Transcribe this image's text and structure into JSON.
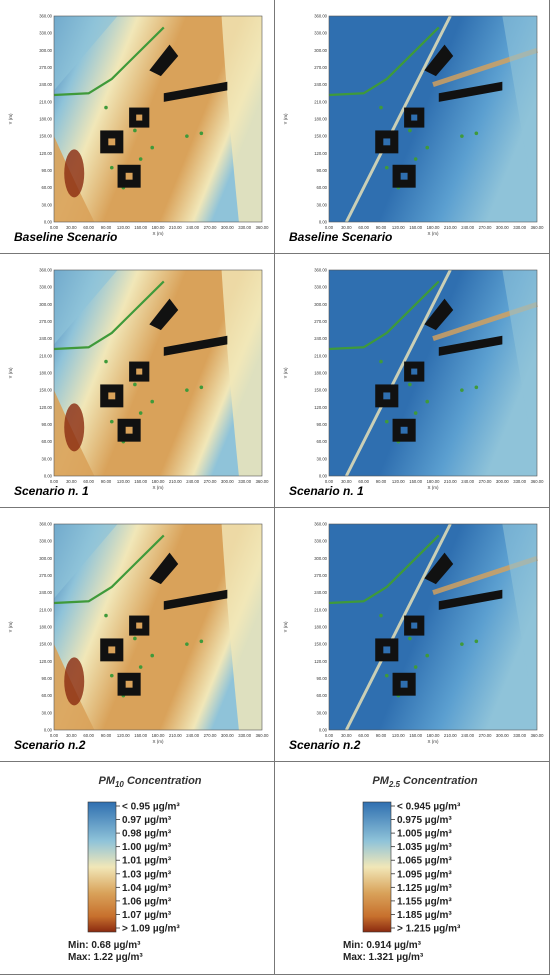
{
  "chart_data": [
    {
      "type": "heatmap",
      "pollutant": "PM10",
      "scenario": "Baseline Scenario",
      "xlabel": "X (m)",
      "ylabel": "Y (m)",
      "xlim": [
        0,
        360
      ],
      "ylim": [
        0,
        360
      ],
      "x_ticks": [
        "0.00",
        "30.00",
        "60.00",
        "90.00",
        "120.00",
        "150.00",
        "180.00",
        "210.00",
        "240.00",
        "270.00",
        "300.00",
        "330.00",
        "360.00"
      ],
      "y_ticks": [
        "0.00",
        "30.00",
        "60.00",
        "90.00",
        "120.00",
        "150.00",
        "180.00",
        "210.00",
        "240.00",
        "270.00",
        "300.00",
        "330.00",
        "360.00"
      ],
      "level": 0.72
    },
    {
      "type": "heatmap",
      "pollutant": "PM2.5",
      "scenario": "Baseline Scenario",
      "xlabel": "X (m)",
      "ylabel": "Y (m)",
      "xlim": [
        0,
        360
      ],
      "ylim": [
        0,
        360
      ],
      "x_ticks": [
        "0.00",
        "30.00",
        "60.00",
        "90.00",
        "120.00",
        "150.00",
        "180.00",
        "210.00",
        "240.00",
        "270.00",
        "300.00",
        "330.00",
        "360.00"
      ],
      "y_ticks": [
        "0.00",
        "30.00",
        "60.00",
        "90.00",
        "120.00",
        "150.00",
        "180.00",
        "210.00",
        "240.00",
        "270.00",
        "300.00",
        "330.00",
        "360.00"
      ],
      "level": 0.15
    },
    {
      "type": "heatmap",
      "pollutant": "PM10",
      "scenario": "Scenario n. 1",
      "xlabel": "X (m)",
      "ylabel": "Y (m)",
      "xlim": [
        0,
        360
      ],
      "ylim": [
        0,
        360
      ],
      "x_ticks": [
        "0.00",
        "30.00",
        "60.00",
        "90.00",
        "120.00",
        "150.00",
        "180.00",
        "210.00",
        "240.00",
        "270.00",
        "300.00",
        "330.00",
        "360.00"
      ],
      "y_ticks": [
        "0.00",
        "30.00",
        "60.00",
        "90.00",
        "120.00",
        "150.00",
        "180.00",
        "210.00",
        "240.00",
        "270.00",
        "300.00",
        "330.00",
        "360.00"
      ],
      "level": 0.62
    },
    {
      "type": "heatmap",
      "pollutant": "PM2.5",
      "scenario": "Scenario n. 1",
      "xlabel": "X (m)",
      "ylabel": "Y (m)",
      "xlim": [
        0,
        360
      ],
      "ylim": [
        0,
        360
      ],
      "x_ticks": [
        "0.00",
        "30.00",
        "60.00",
        "90.00",
        "120.00",
        "150.00",
        "180.00",
        "210.00",
        "240.00",
        "270.00",
        "300.00",
        "330.00",
        "360.00"
      ],
      "y_ticks": [
        "0.00",
        "30.00",
        "60.00",
        "90.00",
        "120.00",
        "150.00",
        "180.00",
        "210.00",
        "240.00",
        "270.00",
        "300.00",
        "330.00",
        "360.00"
      ],
      "level": 0.08
    },
    {
      "type": "heatmap",
      "pollutant": "PM10",
      "scenario": "Scenario n.2",
      "xlabel": "X (m)",
      "ylabel": "Y (m)",
      "xlim": [
        0,
        360
      ],
      "ylim": [
        0,
        360
      ],
      "x_ticks": [
        "0.00",
        "30.00",
        "60.00",
        "90.00",
        "120.00",
        "150.00",
        "180.00",
        "210.00",
        "240.00",
        "270.00",
        "300.00",
        "330.00",
        "360.00"
      ],
      "y_ticks": [
        "0.00",
        "30.00",
        "60.00",
        "90.00",
        "120.00",
        "150.00",
        "180.00",
        "210.00",
        "240.00",
        "270.00",
        "300.00",
        "330.00",
        "360.00"
      ],
      "level": 0.66
    },
    {
      "type": "heatmap",
      "pollutant": "PM2.5",
      "scenario": "Scenario n.2",
      "xlabel": "X (m)",
      "ylabel": "Y (m)",
      "xlim": [
        0,
        360
      ],
      "ylim": [
        0,
        360
      ],
      "x_ticks": [
        "0.00",
        "30.00",
        "60.00",
        "90.00",
        "120.00",
        "150.00",
        "180.00",
        "210.00",
        "240.00",
        "270.00",
        "300.00",
        "330.00",
        "360.00"
      ],
      "y_ticks": [
        "0.00",
        "30.00",
        "60.00",
        "90.00",
        "120.00",
        "150.00",
        "180.00",
        "210.00",
        "240.00",
        "270.00",
        "300.00",
        "330.00",
        "360.00"
      ],
      "level": 0.12
    }
  ],
  "legends": [
    {
      "title_base": "PM",
      "title_sub": "10",
      "title_rest": " Concentration",
      "entries": [
        "< 0.95  µg/m³",
        "0.97  µg/m³",
        "0.98  µg/m³",
        "1.00  µg/m³",
        "1.01  µg/m³",
        "1.03  µg/m³",
        "1.04  µg/m³",
        "1.06  µg/m³",
        "1.07  µg/m³",
        "> 1.09 µg/m³"
      ],
      "min": "Min:  0.68  µg/m³",
      "max": "Max:  1.22  µg/m³"
    },
    {
      "title_base": "PM",
      "title_sub": "2.5",
      "title_rest": " Concentration",
      "entries": [
        "< 0.945 µg/m³",
        "0.975  µg/m³",
        "1.005  µg/m³",
        "1.035  µg/m³",
        "1.065  µg/m³",
        "1.095  µg/m³",
        "1.125  µg/m³",
        "1.155  µg/m³",
        "1.185  µg/m³",
        "> 1.215 µg/m³"
      ],
      "min": "Min:  0.914 µg/m³",
      "max": "Max:  1.321 µg/m³"
    }
  ],
  "colors": {
    "blue": "#2f6fb0",
    "lightblue": "#8fc3d9",
    "cream": "#f1e7b8",
    "tan": "#d9a25a",
    "orange": "#c7702d",
    "brown": "#8a2a10",
    "green": "#3f9a3a",
    "black": "#111111"
  }
}
